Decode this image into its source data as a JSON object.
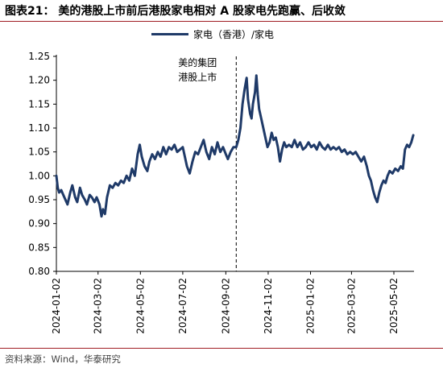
{
  "title": "图表21：  美的港股上市前后港股家电相对 A 股家电先跑赢、后收敛",
  "source": "资料来源：Wind，华泰研究",
  "chart_data": {
    "type": "line",
    "title": "美的港股上市前后港股家电相对 A 股家电先跑赢、后收敛",
    "xlabel": "",
    "ylabel": "",
    "ylim": [
      0.8,
      1.25
    ],
    "yticks": [
      "0.80",
      "0.85",
      "0.90",
      "0.95",
      "1.00",
      "1.05",
      "1.10",
      "1.15",
      "1.20",
      "1.25"
    ],
    "xticks": [
      "2024-01-02",
      "2024-03-02",
      "2024-05-02",
      "2024-07-02",
      "2024-09-02",
      "2024-11-02",
      "2025-01-02",
      "2025-03-02",
      "2025-05-02"
    ],
    "xlim": [
      "2024-01-02",
      "2025-05-31"
    ],
    "grid": false,
    "legend": "top",
    "annotation": {
      "date": "2024-09-17",
      "text_line1": "美的集团",
      "text_line2": "港股上市"
    },
    "series": [
      {
        "name": "家电（香港）/家电",
        "color": "#1f3a68",
        "points": [
          [
            "2024-01-02",
            1.0
          ],
          [
            "2024-01-04",
            0.975
          ],
          [
            "2024-01-06",
            0.965
          ],
          [
            "2024-01-09",
            0.97
          ],
          [
            "2024-01-12",
            0.96
          ],
          [
            "2024-01-15",
            0.95
          ],
          [
            "2024-01-18",
            0.94
          ],
          [
            "2024-01-22",
            0.965
          ],
          [
            "2024-01-25",
            0.98
          ],
          [
            "2024-01-29",
            0.955
          ],
          [
            "2024-02-01",
            0.945
          ],
          [
            "2024-02-05",
            0.975
          ],
          [
            "2024-02-08",
            0.96
          ],
          [
            "2024-02-12",
            0.95
          ],
          [
            "2024-02-15",
            0.94
          ],
          [
            "2024-02-19",
            0.96
          ],
          [
            "2024-02-22",
            0.955
          ],
          [
            "2024-02-26",
            0.945
          ],
          [
            "2024-02-29",
            0.955
          ],
          [
            "2024-03-04",
            0.94
          ],
          [
            "2024-03-07",
            0.915
          ],
          [
            "2024-03-09",
            0.93
          ],
          [
            "2024-03-12",
            0.92
          ],
          [
            "2024-03-15",
            0.955
          ],
          [
            "2024-03-19",
            0.98
          ],
          [
            "2024-03-23",
            0.975
          ],
          [
            "2024-03-27",
            0.985
          ],
          [
            "2024-03-31",
            0.98
          ],
          [
            "2024-04-04",
            0.99
          ],
          [
            "2024-04-08",
            0.985
          ],
          [
            "2024-04-12",
            1.0
          ],
          [
            "2024-04-16",
            0.99
          ],
          [
            "2024-04-20",
            1.015
          ],
          [
            "2024-04-24",
            1.0
          ],
          [
            "2024-04-28",
            1.045
          ],
          [
            "2024-05-01",
            1.065
          ],
          [
            "2024-05-04",
            1.04
          ],
          [
            "2024-05-08",
            1.02
          ],
          [
            "2024-05-12",
            1.01
          ],
          [
            "2024-05-15",
            1.03
          ],
          [
            "2024-05-19",
            1.045
          ],
          [
            "2024-05-23",
            1.035
          ],
          [
            "2024-05-27",
            1.05
          ],
          [
            "2024-05-31",
            1.04
          ],
          [
            "2024-06-04",
            1.06
          ],
          [
            "2024-06-08",
            1.045
          ],
          [
            "2024-06-12",
            1.06
          ],
          [
            "2024-06-16",
            1.055
          ],
          [
            "2024-06-20",
            1.065
          ],
          [
            "2024-06-24",
            1.05
          ],
          [
            "2024-06-28",
            1.055
          ],
          [
            "2024-07-02",
            1.06
          ],
          [
            "2024-07-05",
            1.04
          ],
          [
            "2024-07-08",
            1.02
          ],
          [
            "2024-07-12",
            1.005
          ],
          [
            "2024-07-16",
            1.03
          ],
          [
            "2024-07-20",
            1.05
          ],
          [
            "2024-07-24",
            1.045
          ],
          [
            "2024-07-28",
            1.06
          ],
          [
            "2024-08-01",
            1.075
          ],
          [
            "2024-08-05",
            1.05
          ],
          [
            "2024-08-09",
            1.035
          ],
          [
            "2024-08-13",
            1.06
          ],
          [
            "2024-08-17",
            1.045
          ],
          [
            "2024-08-21",
            1.07
          ],
          [
            "2024-08-25",
            1.05
          ],
          [
            "2024-08-29",
            1.06
          ],
          [
            "2024-09-02",
            1.045
          ],
          [
            "2024-09-05",
            1.035
          ],
          [
            "2024-09-09",
            1.05
          ],
          [
            "2024-09-13",
            1.06
          ],
          [
            "2024-09-17",
            1.06
          ],
          [
            "2024-09-20",
            1.075
          ],
          [
            "2024-09-23",
            1.1
          ],
          [
            "2024-09-26",
            1.15
          ],
          [
            "2024-09-29",
            1.18
          ],
          [
            "2024-10-02",
            1.205
          ],
          [
            "2024-10-04",
            1.16
          ],
          [
            "2024-10-07",
            1.13
          ],
          [
            "2024-10-09",
            1.12
          ],
          [
            "2024-10-11",
            1.15
          ],
          [
            "2024-10-14",
            1.175
          ],
          [
            "2024-10-16",
            1.21
          ],
          [
            "2024-10-18",
            1.17
          ],
          [
            "2024-10-20",
            1.14
          ],
          [
            "2024-10-23",
            1.12
          ],
          [
            "2024-10-26",
            1.1
          ],
          [
            "2024-10-29",
            1.08
          ],
          [
            "2024-11-01",
            1.06
          ],
          [
            "2024-11-04",
            1.07
          ],
          [
            "2024-11-07",
            1.09
          ],
          [
            "2024-11-10",
            1.075
          ],
          [
            "2024-11-13",
            1.08
          ],
          [
            "2024-11-16",
            1.06
          ],
          [
            "2024-11-19",
            1.03
          ],
          [
            "2024-11-22",
            1.055
          ],
          [
            "2024-11-25",
            1.07
          ],
          [
            "2024-11-28",
            1.06
          ],
          [
            "2024-12-02",
            1.065
          ],
          [
            "2024-12-06",
            1.06
          ],
          [
            "2024-12-10",
            1.075
          ],
          [
            "2024-12-14",
            1.06
          ],
          [
            "2024-12-18",
            1.07
          ],
          [
            "2024-12-22",
            1.055
          ],
          [
            "2024-12-26",
            1.06
          ],
          [
            "2024-12-30",
            1.07
          ],
          [
            "2025-01-03",
            1.06
          ],
          [
            "2025-01-07",
            1.065
          ],
          [
            "2025-01-11",
            1.055
          ],
          [
            "2025-01-15",
            1.07
          ],
          [
            "2025-01-19",
            1.06
          ],
          [
            "2025-01-23",
            1.055
          ],
          [
            "2025-01-27",
            1.065
          ],
          [
            "2025-01-31",
            1.055
          ],
          [
            "2025-02-04",
            1.06
          ],
          [
            "2025-02-08",
            1.055
          ],
          [
            "2025-02-12",
            1.06
          ],
          [
            "2025-02-16",
            1.05
          ],
          [
            "2025-02-20",
            1.055
          ],
          [
            "2025-02-24",
            1.045
          ],
          [
            "2025-02-28",
            1.05
          ],
          [
            "2025-03-04",
            1.045
          ],
          [
            "2025-03-08",
            1.05
          ],
          [
            "2025-03-12",
            1.04
          ],
          [
            "2025-03-16",
            1.03
          ],
          [
            "2025-03-20",
            1.04
          ],
          [
            "2025-03-24",
            1.02
          ],
          [
            "2025-03-27",
            1.0
          ],
          [
            "2025-03-30",
            0.99
          ],
          [
            "2025-04-02",
            0.97
          ],
          [
            "2025-04-05",
            0.955
          ],
          [
            "2025-04-08",
            0.945
          ],
          [
            "2025-04-11",
            0.965
          ],
          [
            "2025-04-14",
            0.98
          ],
          [
            "2025-04-17",
            0.99
          ],
          [
            "2025-04-20",
            0.985
          ],
          [
            "2025-04-23",
            1.0
          ],
          [
            "2025-04-26",
            1.01
          ],
          [
            "2025-04-30",
            1.005
          ],
          [
            "2025-05-04",
            1.015
          ],
          [
            "2025-05-08",
            1.01
          ],
          [
            "2025-05-12",
            1.02
          ],
          [
            "2025-05-15",
            1.015
          ],
          [
            "2025-05-18",
            1.055
          ],
          [
            "2025-05-21",
            1.065
          ],
          [
            "2025-05-24",
            1.06
          ],
          [
            "2025-05-27",
            1.07
          ],
          [
            "2025-05-30",
            1.085
          ]
        ]
      }
    ]
  }
}
